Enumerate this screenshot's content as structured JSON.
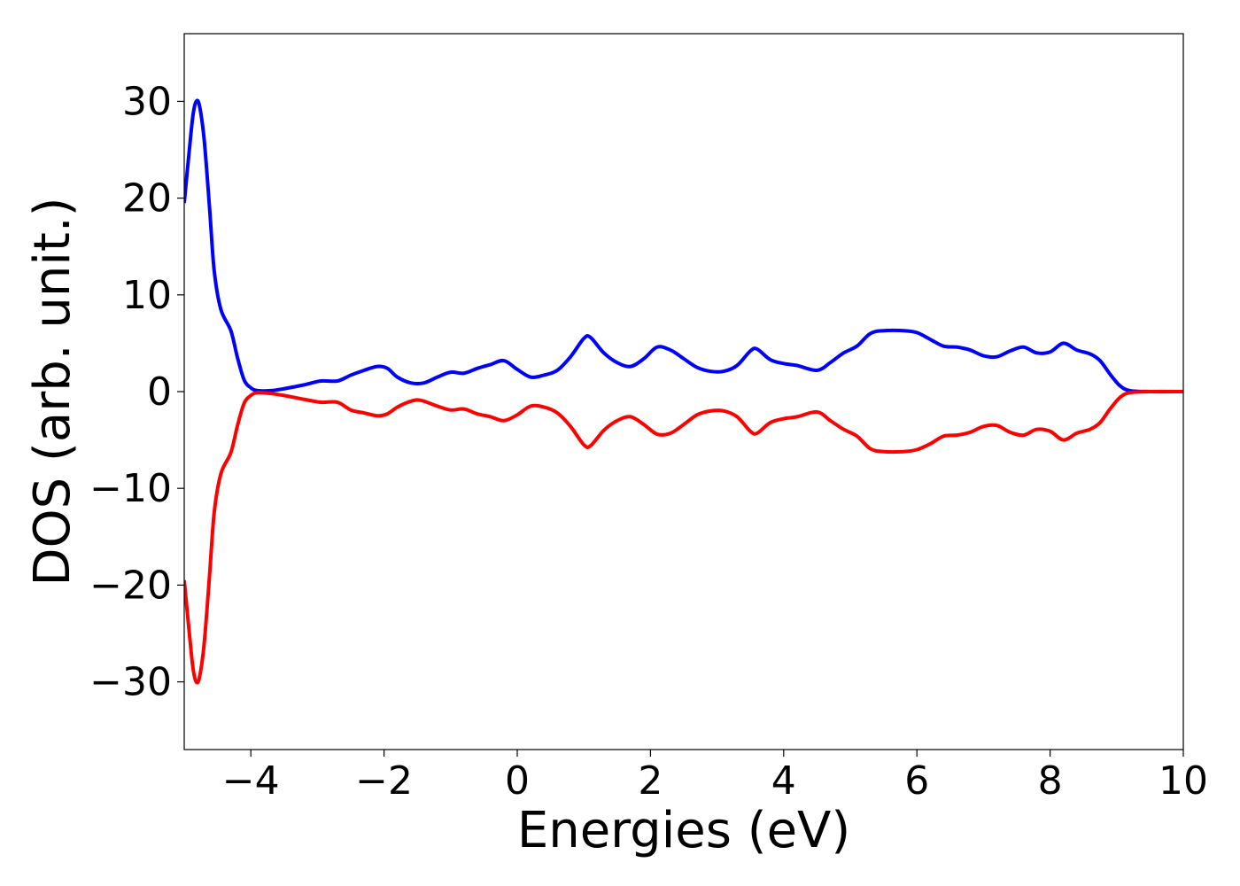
{
  "chart_data": {
    "type": "line",
    "title": "",
    "xlabel": "Energies (eV)",
    "ylabel": "DOS (arb. unit.)",
    "xlim": [
      -5,
      10
    ],
    "ylim": [
      -37,
      37
    ],
    "x_ticks": [
      -4,
      -2,
      0,
      2,
      4,
      6,
      8,
      10
    ],
    "y_ticks": [
      -30,
      -20,
      -10,
      0,
      10,
      20,
      30
    ],
    "x_tick_labels": [
      "−4",
      "−2",
      "0",
      "2",
      "4",
      "6",
      "8",
      "10"
    ],
    "y_tick_labels": [
      "−30",
      "−20",
      "−10",
      "0",
      "10",
      "20",
      "30"
    ],
    "grid": false,
    "legend": "none",
    "series": [
      {
        "color": "#0000ff",
        "points": [
          [
            -5.0,
            19.5
          ],
          [
            -4.93,
            24.5
          ],
          [
            -4.87,
            28.5
          ],
          [
            -4.82,
            30.0
          ],
          [
            -4.77,
            29.5
          ],
          [
            -4.7,
            26.0
          ],
          [
            -4.62,
            19.0
          ],
          [
            -4.55,
            12.5
          ],
          [
            -4.45,
            8.5
          ],
          [
            -4.3,
            6.3
          ],
          [
            -4.2,
            3.5
          ],
          [
            -4.1,
            1.2
          ],
          [
            -4.0,
            0.4
          ],
          [
            -3.9,
            0.1
          ],
          [
            -3.7,
            0.1
          ],
          [
            -3.5,
            0.3
          ],
          [
            -3.2,
            0.7
          ],
          [
            -2.95,
            1.1
          ],
          [
            -2.7,
            1.1
          ],
          [
            -2.5,
            1.7
          ],
          [
            -2.3,
            2.2
          ],
          [
            -2.1,
            2.6
          ],
          [
            -1.95,
            2.4
          ],
          [
            -1.8,
            1.5
          ],
          [
            -1.6,
            0.9
          ],
          [
            -1.4,
            0.9
          ],
          [
            -1.2,
            1.5
          ],
          [
            -1.0,
            2.0
          ],
          [
            -0.8,
            1.9
          ],
          [
            -0.6,
            2.4
          ],
          [
            -0.4,
            2.8
          ],
          [
            -0.2,
            3.2
          ],
          [
            0.0,
            2.3
          ],
          [
            0.2,
            1.5
          ],
          [
            0.4,
            1.7
          ],
          [
            0.6,
            2.2
          ],
          [
            0.8,
            3.6
          ],
          [
            1.0,
            5.5
          ],
          [
            1.1,
            5.6
          ],
          [
            1.3,
            4.0
          ],
          [
            1.5,
            3.0
          ],
          [
            1.7,
            2.6
          ],
          [
            1.9,
            3.4
          ],
          [
            2.1,
            4.6
          ],
          [
            2.3,
            4.3
          ],
          [
            2.5,
            3.4
          ],
          [
            2.7,
            2.5
          ],
          [
            2.9,
            2.1
          ],
          [
            3.1,
            2.1
          ],
          [
            3.3,
            2.7
          ],
          [
            3.5,
            4.2
          ],
          [
            3.6,
            4.4
          ],
          [
            3.8,
            3.3
          ],
          [
            4.0,
            2.9
          ],
          [
            4.2,
            2.7
          ],
          [
            4.5,
            2.2
          ],
          [
            4.7,
            3.0
          ],
          [
            4.9,
            4.0
          ],
          [
            5.1,
            4.7
          ],
          [
            5.3,
            6.0
          ],
          [
            5.5,
            6.3
          ],
          [
            5.8,
            6.3
          ],
          [
            6.0,
            6.1
          ],
          [
            6.2,
            5.4
          ],
          [
            6.4,
            4.7
          ],
          [
            6.6,
            4.6
          ],
          [
            6.8,
            4.3
          ],
          [
            7.0,
            3.7
          ],
          [
            7.2,
            3.6
          ],
          [
            7.4,
            4.2
          ],
          [
            7.6,
            4.6
          ],
          [
            7.8,
            4.0
          ],
          [
            8.0,
            4.1
          ],
          [
            8.2,
            5.0
          ],
          [
            8.4,
            4.3
          ],
          [
            8.6,
            3.9
          ],
          [
            8.75,
            3.2
          ],
          [
            8.9,
            1.8
          ],
          [
            9.05,
            0.6
          ],
          [
            9.2,
            0.1
          ],
          [
            9.5,
            0.0
          ],
          [
            10.0,
            0.0
          ]
        ]
      },
      {
        "color": "#ff0000",
        "points": [
          [
            -5.0,
            -19.5
          ],
          [
            -4.93,
            -24.5
          ],
          [
            -4.87,
            -28.5
          ],
          [
            -4.82,
            -30.0
          ],
          [
            -4.77,
            -29.5
          ],
          [
            -4.7,
            -26.0
          ],
          [
            -4.62,
            -19.0
          ],
          [
            -4.55,
            -12.5
          ],
          [
            -4.45,
            -8.5
          ],
          [
            -4.3,
            -6.3
          ],
          [
            -4.2,
            -3.5
          ],
          [
            -4.1,
            -1.2
          ],
          [
            -4.0,
            -0.4
          ],
          [
            -3.9,
            -0.1
          ],
          [
            -3.7,
            -0.2
          ],
          [
            -3.5,
            -0.4
          ],
          [
            -3.2,
            -0.8
          ],
          [
            -2.95,
            -1.1
          ],
          [
            -2.7,
            -1.1
          ],
          [
            -2.5,
            -1.9
          ],
          [
            -2.3,
            -2.2
          ],
          [
            -2.1,
            -2.5
          ],
          [
            -1.95,
            -2.3
          ],
          [
            -1.8,
            -1.6
          ],
          [
            -1.6,
            -1.0
          ],
          [
            -1.45,
            -0.9
          ],
          [
            -1.2,
            -1.5
          ],
          [
            -1.0,
            -1.9
          ],
          [
            -0.8,
            -1.8
          ],
          [
            -0.6,
            -2.3
          ],
          [
            -0.4,
            -2.6
          ],
          [
            -0.2,
            -3.0
          ],
          [
            0.0,
            -2.4
          ],
          [
            0.2,
            -1.5
          ],
          [
            0.4,
            -1.6
          ],
          [
            0.6,
            -2.2
          ],
          [
            0.8,
            -3.6
          ],
          [
            1.0,
            -5.5
          ],
          [
            1.1,
            -5.6
          ],
          [
            1.3,
            -4.0
          ],
          [
            1.5,
            -3.0
          ],
          [
            1.7,
            -2.6
          ],
          [
            1.9,
            -3.4
          ],
          [
            2.1,
            -4.4
          ],
          [
            2.3,
            -4.3
          ],
          [
            2.5,
            -3.4
          ],
          [
            2.7,
            -2.4
          ],
          [
            2.9,
            -2.0
          ],
          [
            3.1,
            -2.0
          ],
          [
            3.3,
            -2.6
          ],
          [
            3.5,
            -4.1
          ],
          [
            3.6,
            -4.3
          ],
          [
            3.8,
            -3.2
          ],
          [
            4.0,
            -2.8
          ],
          [
            4.2,
            -2.6
          ],
          [
            4.5,
            -2.1
          ],
          [
            4.7,
            -3.0
          ],
          [
            4.9,
            -3.9
          ],
          [
            5.1,
            -4.6
          ],
          [
            5.3,
            -5.9
          ],
          [
            5.5,
            -6.2
          ],
          [
            5.8,
            -6.2
          ],
          [
            6.0,
            -6.0
          ],
          [
            6.2,
            -5.4
          ],
          [
            6.4,
            -4.6
          ],
          [
            6.6,
            -4.5
          ],
          [
            6.8,
            -4.2
          ],
          [
            7.0,
            -3.6
          ],
          [
            7.2,
            -3.5
          ],
          [
            7.4,
            -4.2
          ],
          [
            7.6,
            -4.5
          ],
          [
            7.8,
            -3.9
          ],
          [
            8.0,
            -4.1
          ],
          [
            8.2,
            -5.0
          ],
          [
            8.4,
            -4.3
          ],
          [
            8.6,
            -3.9
          ],
          [
            8.75,
            -3.2
          ],
          [
            8.9,
            -1.8
          ],
          [
            9.05,
            -0.6
          ],
          [
            9.2,
            -0.1
          ],
          [
            9.5,
            0.0
          ],
          [
            10.0,
            0.0
          ]
        ]
      }
    ]
  }
}
